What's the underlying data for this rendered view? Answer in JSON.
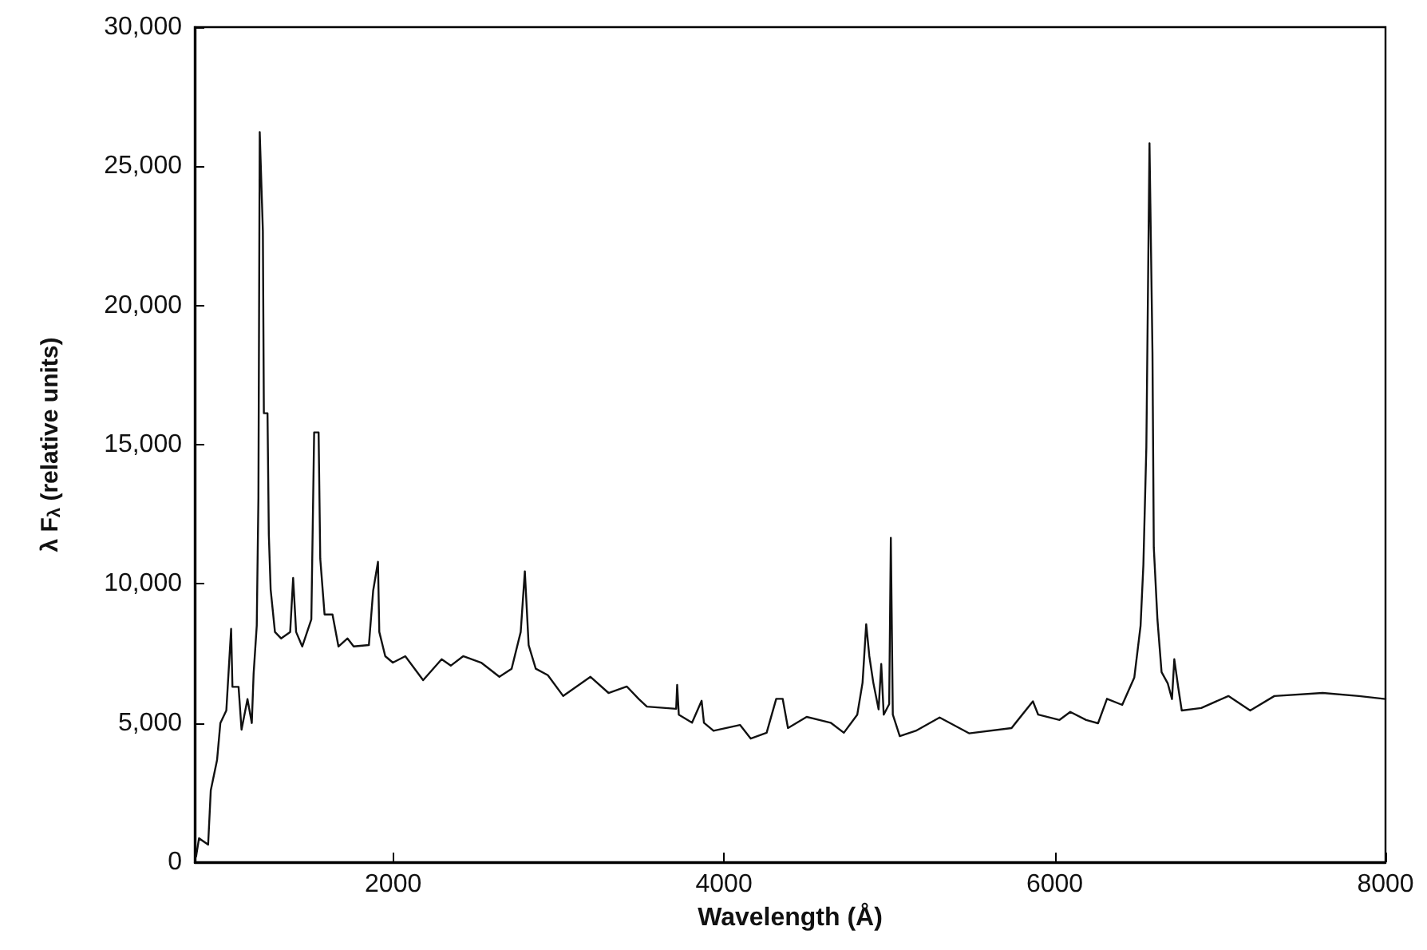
{
  "chart_data": {
    "type": "line",
    "xlabel": "Wavelength (Å)",
    "ylabel": "λ F$_{λ}$ (relative units)",
    "xlim": [
      800,
      8000
    ],
    "ylim": [
      0,
      30000
    ],
    "xticks": [
      2000,
      4000,
      6000,
      8000
    ],
    "yticks": [
      {
        "value": 0,
        "label": "0"
      },
      {
        "value": 5000,
        "label": "5,000"
      },
      {
        "value": 10000,
        "label": "10,000"
      },
      {
        "value": 15000,
        "label": "15,000"
      },
      {
        "value": 20000,
        "label": "20,000"
      },
      {
        "value": 25000,
        "label": "25,000"
      },
      {
        "value": 30000,
        "label": "30,000"
      }
    ],
    "grid": false,
    "marker": "none",
    "line_style": "solid",
    "series": [
      {
        "color": "#111111",
        "x": [
          808,
          826,
          881,
          897,
          935,
          955,
          991,
          1020,
          1028,
          1065,
          1083,
          1119,
          1145,
          1156,
          1175,
          1185,
          1193,
          1212,
          1218,
          1240,
          1248,
          1259,
          1285,
          1322,
          1377,
          1395,
          1413,
          1450,
          1505,
          1522,
          1549,
          1559,
          1585,
          1633,
          1669,
          1724,
          1761,
          1853,
          1879,
          1908,
          1916,
          1952,
          1998,
          2073,
          2181,
          2293,
          2348,
          2423,
          2532,
          2642,
          2716,
          2771,
          2796,
          2819,
          2862,
          2935,
          3028,
          3193,
          3302,
          3413,
          3485,
          3534,
          3711,
          3717,
          3727,
          3807,
          3865,
          3879,
          3937,
          4097,
          4162,
          4258,
          4316,
          4355,
          4387,
          4500,
          4645,
          4725,
          4806,
          4838,
          4860,
          4879,
          4903,
          4935,
          4951,
          4966,
          4999,
          5009,
          5021,
          5063,
          5160,
          5304,
          5482,
          5739,
          5868,
          5900,
          6029,
          6094,
          6190,
          6262,
          6316,
          6408,
          6481,
          6519,
          6536,
          6554,
          6573,
          6591,
          6599,
          6621,
          6646,
          6683,
          6709,
          6723,
          6746,
          6768,
          6886,
          7050,
          7182,
          7328,
          7620,
          7839,
          8000
        ],
        "values": [
          200,
          860,
          630,
          2580,
          3670,
          5000,
          5450,
          8380,
          6300,
          6300,
          4760,
          5860,
          5000,
          6770,
          8500,
          13080,
          26230,
          22670,
          16130,
          16130,
          11770,
          9800,
          8270,
          8040,
          8270,
          10210,
          8270,
          7750,
          8720,
          15440,
          15440,
          10900,
          8900,
          8900,
          7750,
          8040,
          7750,
          7800,
          9760,
          10790,
          8270,
          7400,
          7170,
          7400,
          6540,
          7290,
          7060,
          7400,
          7170,
          6660,
          6950,
          8270,
          10450,
          7800,
          6950,
          6720,
          5970,
          6660,
          6080,
          6310,
          5860,
          5590,
          5510,
          6370,
          5300,
          5010,
          5800,
          5010,
          4720,
          4930,
          4440,
          4650,
          5870,
          5870,
          4820,
          5220,
          5010,
          4650,
          5300,
          6450,
          8550,
          7400,
          6450,
          5490,
          7120,
          5300,
          5680,
          11650,
          5300,
          4530,
          4720,
          5200,
          4630,
          4820,
          5780,
          5300,
          5110,
          5400,
          5110,
          4990,
          5870,
          5650,
          6630,
          8490,
          10680,
          14920,
          25830,
          18310,
          11310,
          8720,
          6830,
          6430,
          5860,
          7290,
          6310,
          5450,
          5540,
          5970,
          5450,
          5970,
          6080,
          5970,
          5860
        ]
      }
    ]
  }
}
